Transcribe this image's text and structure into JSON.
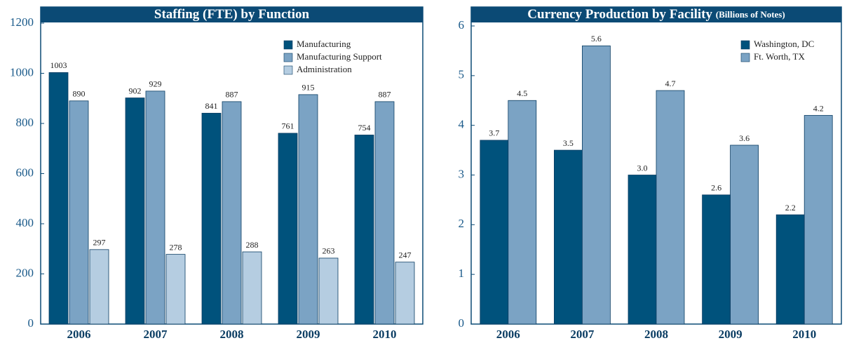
{
  "chart_data": [
    {
      "type": "bar",
      "title": "Staffing (FTE) by Function",
      "categories": [
        "2006",
        "2007",
        "2008",
        "2009",
        "2010"
      ],
      "series": [
        {
          "name": "Manufacturing",
          "color": "#00527c",
          "values": [
            1003,
            902,
            841,
            761,
            754
          ]
        },
        {
          "name": "Manufacturing Support",
          "color": "#7ba3c4",
          "values": [
            890,
            929,
            887,
            915,
            887
          ]
        },
        {
          "name": "Administration",
          "color": "#b5cde1",
          "values": [
            297,
            278,
            288,
            263,
            247
          ]
        }
      ],
      "ylim": [
        0,
        1200
      ],
      "yticks": [
        0,
        200,
        400,
        600,
        800,
        1000,
        1200
      ],
      "legend": "upper right"
    },
    {
      "type": "bar",
      "title": "Currency Production by Facility",
      "subtitle": "(Billions of Notes)",
      "categories": [
        "2006",
        "2007",
        "2008",
        "2009",
        "2010"
      ],
      "series": [
        {
          "name": "Washington, DC",
          "color": "#00527c",
          "values": [
            3.7,
            3.5,
            3.0,
            2.6,
            2.2
          ],
          "value_labels": [
            "3.7",
            "3.5",
            "3.0",
            "2.6",
            "2.2"
          ]
        },
        {
          "name": "Ft. Worth, TX",
          "color": "#7ba3c4",
          "values": [
            4.5,
            5.6,
            4.7,
            3.6,
            4.2
          ],
          "value_labels": [
            "4.5",
            "5.6",
            "4.7",
            "3.6",
            "4.2"
          ]
        }
      ],
      "ylim": [
        0,
        6
      ],
      "yticks": [
        0,
        1,
        2,
        3,
        4,
        5,
        6
      ],
      "legend": "upper right"
    }
  ]
}
